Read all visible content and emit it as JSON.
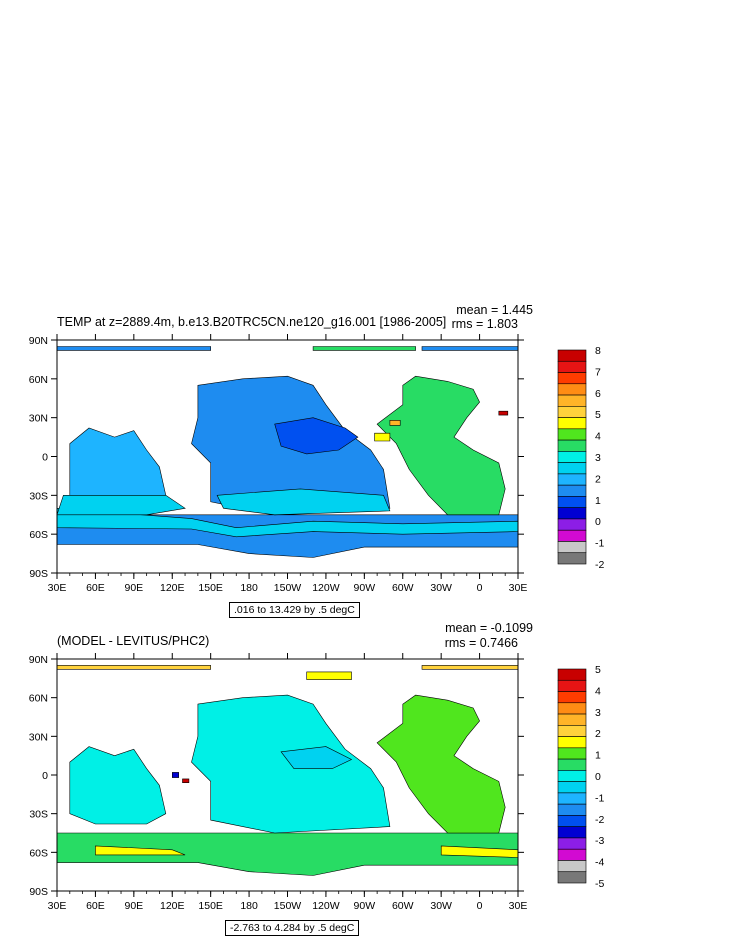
{
  "chart_data": [
    {
      "type": "heatmap",
      "title": "TEMP at z=2889.4m, b.e13.B20TRC5CN.ne120_g16.001 [1986-2005]",
      "stats": {
        "mean": "mean = 1.445",
        "rms": "rms = 1.803"
      },
      "x_ticks": [
        "30E",
        "60E",
        "90E",
        "120E",
        "150E",
        "180",
        "150W",
        "120W",
        "90W",
        "60W",
        "30W",
        "0",
        "30E"
      ],
      "y_ticks": [
        "90N",
        "60N",
        "30N",
        "0",
        "30S",
        "60S",
        "90S"
      ],
      "range_text": ".016 to 13.429 by .5 degC",
      "colorbar_labels": [
        "8",
        "7",
        "6",
        "5",
        "4",
        "3",
        "2",
        "1",
        "0",
        "-1",
        "-2"
      ],
      "colors": [
        "#c80000",
        "#e61414",
        "#ff3c00",
        "#ff8c14",
        "#ffb428",
        "#ffd23c",
        "#ffff00",
        "#50e61e",
        "#28dc64",
        "#00f0e6",
        "#00d2f0",
        "#1eb4ff",
        "#1e8cf0",
        "#0050f0",
        "#0000d2",
        "#8c1ee6",
        "#d20ad2",
        "#c8c8c8",
        "#787878"
      ]
    },
    {
      "type": "heatmap",
      "title": "(MODEL - LEVITUS/PHC2)",
      "stats": {
        "mean": "mean = -0.1099",
        "rms": "rms = 0.7466"
      },
      "x_ticks": [
        "30E",
        "60E",
        "90E",
        "120E",
        "150E",
        "180",
        "150W",
        "120W",
        "90W",
        "60W",
        "30W",
        "0",
        "30E"
      ],
      "y_ticks": [
        "90N",
        "60N",
        "30N",
        "0",
        "30S",
        "60S",
        "90S"
      ],
      "range_text": "-2.763 to 4.284 by .5 degC",
      "colorbar_labels": [
        "5",
        "4",
        "3",
        "2",
        "1",
        "0",
        "-1",
        "-2",
        "-3",
        "-4",
        "-5"
      ],
      "colors": [
        "#c80000",
        "#e61414",
        "#ff3c00",
        "#ff8c14",
        "#ffb428",
        "#ffd23c",
        "#ffff00",
        "#50e61e",
        "#28dc64",
        "#00f0e6",
        "#00d2f0",
        "#1eb4ff",
        "#1e8cf0",
        "#0050f0",
        "#0000d2",
        "#8c1ee6",
        "#d20ad2",
        "#c8c8c8",
        "#787878"
      ]
    }
  ]
}
